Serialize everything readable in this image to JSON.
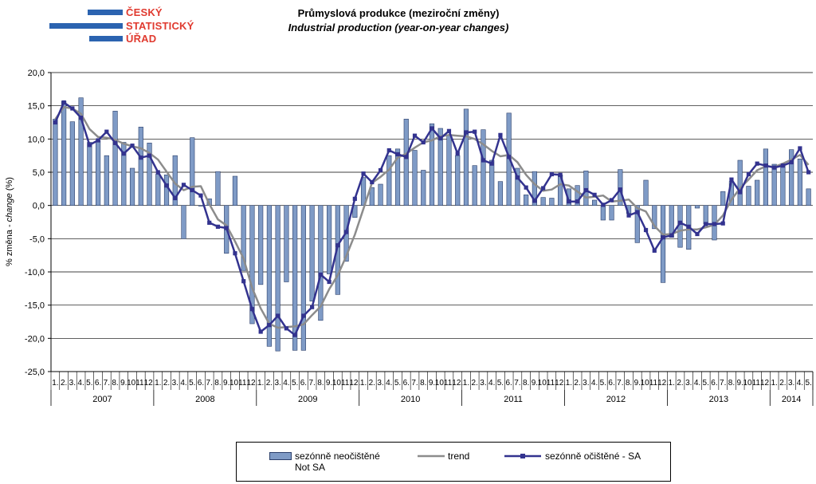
{
  "header": {
    "logo_lines": [
      "ČESKÝ",
      "STATISTICKÝ",
      "ÚŘAD"
    ],
    "title_cz": "Průmyslová produkce (meziroční změny)",
    "title_en": "Industrial production (year-on-year changes)"
  },
  "colors": {
    "not_sa": "#7f9bc6",
    "trend": "#8c8c8c",
    "sa": "#33338f",
    "logo_blue": "#2b63b0",
    "logo_red": "#e03a2f"
  },
  "legend": {
    "not_sa_line1": "sezónně neočištěné",
    "not_sa_line2": "Not SA",
    "trend": "trend",
    "sa": "sezónně očištěné - SA"
  },
  "chart_data": {
    "type": "bar",
    "ylabel": "% změna - change (%)",
    "ylim": [
      -25,
      20
    ],
    "yticks": [
      "20,0",
      "15,0",
      "10,0",
      "5,0",
      "0,0",
      "-5,0",
      "-10,0",
      "-15,0",
      "-20,0",
      "-25,0"
    ],
    "grid": true,
    "legend_position": "bottom",
    "month_labels": [
      "1.",
      "2.",
      "3.",
      "4.",
      "5.",
      "6.",
      "7.",
      "8.",
      "9.",
      "10.",
      "11.",
      "12."
    ],
    "years": [
      "2007",
      "2008",
      "2009",
      "2010",
      "2011",
      "2012",
      "2013",
      "2014"
    ],
    "x_start": "2007-01",
    "x_end": "2014-05",
    "series": [
      {
        "name": "sezónně neočištěné Not SA",
        "kind": "bar",
        "values": [
          13.0,
          15.7,
          12.6,
          16.2,
          9.5,
          9.8,
          7.5,
          14.2,
          9.5,
          5.6,
          11.8,
          9.4,
          4.7,
          4.6,
          7.5,
          -5.0,
          10.2,
          -0.1,
          1.0,
          5.1,
          -7.2,
          4.4,
          -9.8,
          -17.8,
          -11.9,
          -21.2,
          -21.9,
          -11.5,
          -21.8,
          -21.8,
          -14.4,
          -17.3,
          -10.3,
          -13.4,
          -8.4,
          -1.8,
          4.2,
          2.7,
          3.2,
          7.5,
          8.5,
          13.0,
          8.3,
          5.3,
          12.3,
          11.6,
          10.6,
          7.5,
          14.5,
          6.0,
          11.4,
          6.8,
          3.6,
          13.9,
          5.6,
          1.6,
          5.1,
          1.2,
          1.1,
          4.6,
          2.5,
          3.0,
          5.2,
          0.8,
          -2.2,
          -2.2,
          5.4,
          -1.2,
          -5.6,
          3.8,
          -3.5,
          -11.6,
          -4.8,
          -6.3,
          -6.6,
          -0.4,
          -2.8,
          -5.2,
          2.1,
          3.6,
          6.8,
          2.9,
          3.8,
          8.5,
          6.2,
          6.2,
          8.4,
          7.0,
          2.5
        ]
      },
      {
        "name": "trend",
        "kind": "line",
        "values": [
          13.0,
          14.8,
          14.6,
          13.8,
          11.5,
          10.3,
          10.2,
          9.9,
          9.3,
          8.9,
          8.6,
          7.9,
          6.9,
          5.1,
          3.3,
          2.3,
          2.8,
          2.9,
          0.2,
          -2.1,
          -3.0,
          -5.4,
          -8.0,
          -12.4,
          -15.5,
          -17.8,
          -18.4,
          -18.3,
          -18.2,
          -17.9,
          -16.5,
          -15.2,
          -12.6,
          -10.5,
          -7.6,
          -4.4,
          -0.5,
          3.4,
          4.3,
          5.4,
          7.2,
          7.8,
          8.7,
          9.5,
          9.8,
          10.4,
          10.6,
          10.5,
          10.4,
          10.0,
          9.2,
          8.2,
          7.4,
          7.6,
          6.5,
          4.6,
          3.2,
          2.2,
          2.4,
          3.2,
          3.0,
          2.1,
          1.2,
          1.3,
          1.5,
          0.6,
          0.7,
          0.9,
          -0.4,
          -0.9,
          -3.1,
          -4.4,
          -4.3,
          -3.8,
          -3.6,
          -3.6,
          -3.3,
          -2.9,
          -1.5,
          0.9,
          2.6,
          3.9,
          5.3,
          5.9,
          5.8,
          6.3,
          6.9,
          7.6,
          6.1
        ]
      },
      {
        "name": "sezónně očištěné - SA",
        "kind": "line",
        "values": [
          12.5,
          15.5,
          14.6,
          13.2,
          9.1,
          9.8,
          11.1,
          9.4,
          7.8,
          9.0,
          7.2,
          7.5,
          5.0,
          3.0,
          1.1,
          3.1,
          2.3,
          1.5,
          -2.6,
          -3.2,
          -3.4,
          -7.2,
          -11.4,
          -15.6,
          -19.0,
          -18.0,
          -16.6,
          -18.5,
          -19.5,
          -16.6,
          -15.3,
          -10.4,
          -11.5,
          -6.0,
          -4.0,
          1.0,
          4.8,
          3.5,
          5.3,
          8.3,
          7.7,
          7.3,
          10.5,
          9.5,
          11.6,
          10.1,
          11.2,
          7.8,
          11.0,
          11.1,
          6.8,
          6.3,
          10.6,
          7.3,
          4.2,
          2.7,
          0.7,
          2.6,
          4.7,
          4.6,
          0.6,
          0.6,
          2.3,
          1.6,
          0.1,
          0.8,
          2.4,
          -1.5,
          -1.0,
          -3.7,
          -6.8,
          -4.8,
          -4.5,
          -2.6,
          -3.2,
          -4.3,
          -2.8,
          -2.8,
          -2.7,
          3.9,
          2.0,
          4.7,
          6.3,
          6.0,
          5.7,
          6.0,
          6.5,
          8.6,
          5.0
        ]
      }
    ]
  }
}
